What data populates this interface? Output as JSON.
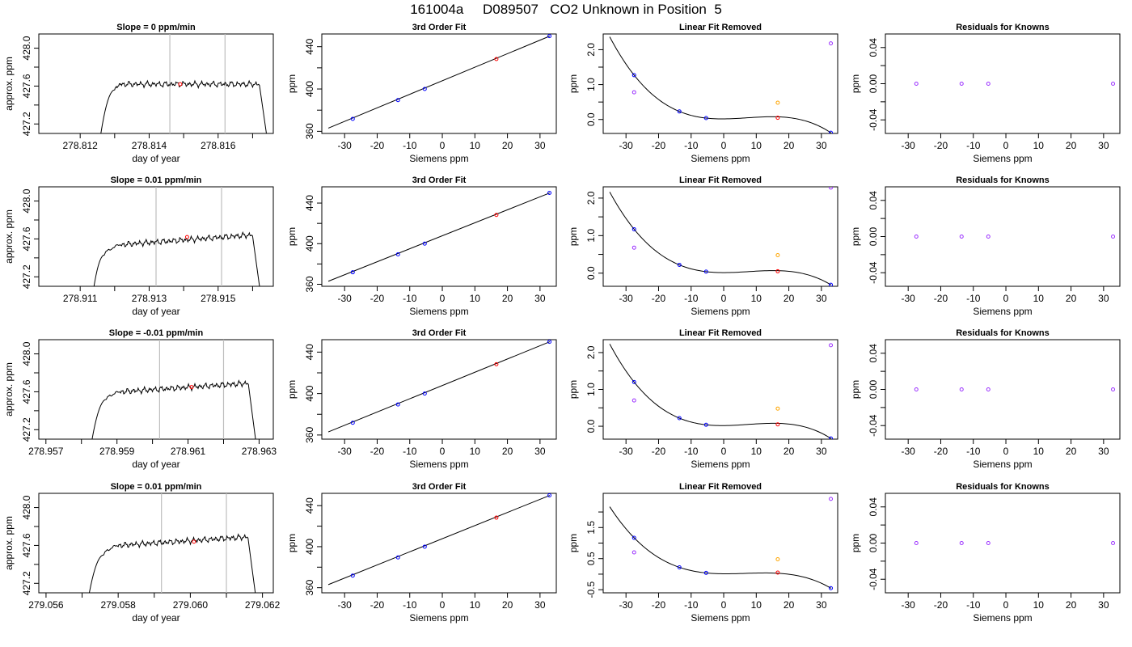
{
  "page": {
    "title": "161004a     D089507   CO2 Unknown in Position  5"
  },
  "colors": {
    "line": "#000000",
    "known": "#0000ff",
    "unknown": "#ff0000",
    "orange": "#ffa500",
    "violet": "#9b30ff",
    "gray": "#bebebe"
  },
  "chart_data": [
    {
      "type": "line",
      "row": 0,
      "title": "Slope =  0  ppm/min",
      "xlabel": "day of year",
      "ylabel": "approx. ppm",
      "xlim": [
        278.8108,
        278.8176
      ],
      "ylim": [
        427.1,
        428.15
      ],
      "xticks": [
        278.812,
        278.814,
        278.816
      ],
      "xminor": [
        278.813,
        278.815,
        278.817
      ],
      "yticks": [
        427.2,
        427.6,
        428.0
      ],
      "yminor": [
        427.4,
        427.8
      ],
      "vlines": [
        278.8146,
        278.8162
      ],
      "marker": {
        "x": 278.8149,
        "y": 427.62
      },
      "trace": {
        "x_start": 278.8126,
        "rise_end": 278.813,
        "plateau_start": 278.8132,
        "plateau_end": 278.8172,
        "x_end": 278.8174,
        "y_start": 427.1,
        "y_shoulder": 427.56,
        "plateau_level": 427.62,
        "plateau_slope": 0.0,
        "y_final": 427.1
      }
    },
    {
      "type": "scatter",
      "row": 0,
      "title": "3rd Order Fit",
      "xlabel": "Siemens ppm",
      "ylabel": "ppm",
      "xlim": [
        -37,
        35
      ],
      "ylim": [
        358,
        452
      ],
      "xticks": [
        -30,
        -20,
        -10,
        0,
        10,
        20,
        30
      ],
      "yticks": [
        360,
        400,
        440
      ],
      "yminor": [
        380,
        420
      ],
      "fit_line": {
        "x": [
          -35,
          33
        ],
        "y": [
          363,
          450
        ]
      },
      "series": [
        {
          "color": "known",
          "points": [
            [
              -27.5,
              371.8
            ],
            [
              -13.6,
              389.5
            ],
            [
              -5.4,
              400.0
            ],
            [
              32.9,
              450.0
            ]
          ]
        },
        {
          "color": "unknown",
          "points": [
            [
              16.6,
              428.3
            ]
          ]
        }
      ]
    },
    {
      "type": "scatter",
      "row": 0,
      "title": "Linear Fit Removed",
      "xlabel": "Siemens ppm",
      "ylabel": "ppm",
      "xlim": [
        -37,
        35
      ],
      "ylim": [
        -0.4,
        2.45
      ],
      "xticks": [
        -30,
        -20,
        -10,
        0,
        10,
        20,
        30
      ],
      "yticks": [
        0.0,
        1.0,
        2.0
      ],
      "ytick_labels": [
        "0.0",
        "1.0",
        "2.0"
      ],
      "yminor": [
        0.5,
        1.5
      ],
      "curve": {
        "x0": 0.0,
        "a": 0.0006,
        "b": 0.00016,
        "c": -8e-07
      },
      "series": [
        {
          "color": "known",
          "points": [
            [
              -27.5,
              1.27
            ],
            [
              -13.6,
              0.23
            ],
            [
              -5.4,
              0.04
            ],
            [
              32.9,
              -0.38
            ]
          ]
        },
        {
          "color": "unknown",
          "points": [
            [
              16.6,
              0.05
            ]
          ]
        },
        {
          "color": "orange",
          "points": [
            [
              16.6,
              0.48
            ]
          ]
        },
        {
          "color": "violet",
          "points": [
            [
              -27.5,
              0.78
            ],
            [
              32.9,
              2.18
            ]
          ]
        }
      ]
    },
    {
      "type": "scatter",
      "row": 0,
      "title": "Residuals for Knowns",
      "xlabel": "Siemens ppm",
      "ylabel": "ppm",
      "xlim": [
        -37,
        35
      ],
      "ylim": [
        -0.055,
        0.055
      ],
      "xticks": [
        -30,
        -20,
        -10,
        0,
        10,
        20,
        30
      ],
      "yticks": [
        -0.04,
        0.0,
        0.04
      ],
      "ytick_labels": [
        "-0.04",
        "0.00",
        "0.04"
      ],
      "yminor": [
        -0.02,
        0.02
      ],
      "series": [
        {
          "color": "violet",
          "points": [
            [
              -27.5,
              0.0
            ],
            [
              -13.6,
              0.0
            ],
            [
              -5.4,
              0.0
            ],
            [
              32.9,
              0.0
            ]
          ]
        }
      ]
    },
    {
      "type": "line",
      "row": 1,
      "title": "Slope =  0.01  ppm/min",
      "xlabel": "day of year",
      "ylabel": "approx. ppm",
      "xlim": [
        278.9098,
        278.9166
      ],
      "ylim": [
        427.1,
        428.15
      ],
      "xticks": [
        278.911,
        278.913,
        278.915
      ],
      "xminor": [
        278.912,
        278.914,
        278.916
      ],
      "yticks": [
        427.2,
        427.6,
        428.0
      ],
      "yminor": [
        427.4,
        427.8
      ],
      "vlines": [
        278.9132,
        278.9151
      ],
      "marker": {
        "x": 278.9141,
        "y": 427.62
      },
      "trace": {
        "x_start": 278.9114,
        "rise_end": 278.9117,
        "plateau_start": 278.9122,
        "plateau_end": 278.916,
        "x_end": 278.9162,
        "y_start": 427.1,
        "y_shoulder": 427.43,
        "plateau_level": 427.54,
        "plateau_slope": 27.0,
        "y_final": 427.1
      }
    },
    {
      "type": "scatter",
      "row": 1,
      "title": "3rd Order Fit",
      "xlabel": "Siemens ppm",
      "ylabel": "ppm",
      "xlim": [
        -37,
        35
      ],
      "ylim": [
        358,
        456
      ],
      "xticks": [
        -30,
        -20,
        -10,
        0,
        10,
        20,
        30
      ],
      "yticks": [
        360,
        400,
        440
      ],
      "yminor": [
        380,
        420
      ],
      "fit_line": {
        "x": [
          -35,
          33
        ],
        "y": [
          363,
          450
        ]
      },
      "series": [
        {
          "color": "known",
          "points": [
            [
              -27.5,
              371.8
            ],
            [
              -13.6,
              389.5
            ],
            [
              -5.4,
              400.0
            ],
            [
              32.9,
              450.0
            ]
          ]
        },
        {
          "color": "unknown",
          "points": [
            [
              16.6,
              428.3
            ]
          ]
        }
      ]
    },
    {
      "type": "scatter",
      "row": 1,
      "title": "Linear Fit Removed",
      "xlabel": "Siemens ppm",
      "ylabel": "ppm",
      "xlim": [
        -37,
        35
      ],
      "ylim": [
        -0.35,
        2.3
      ],
      "xticks": [
        -30,
        -20,
        -10,
        0,
        10,
        20,
        30
      ],
      "yticks": [
        0.0,
        1.0,
        2.0
      ],
      "ytick_labels": [
        "0.0",
        "1.0",
        "2.0"
      ],
      "yminor": [
        0.5,
        1.5
      ],
      "curve": {
        "x0": 0.0,
        "a": 0.0006,
        "b": 0.00016,
        "c": -8e-07
      },
      "series": [
        {
          "color": "known",
          "points": [
            [
              -27.5,
              1.17
            ],
            [
              -13.6,
              0.22
            ],
            [
              -5.4,
              0.04
            ],
            [
              32.9,
              -0.31
            ]
          ]
        },
        {
          "color": "unknown",
          "points": [
            [
              16.6,
              0.05
            ]
          ]
        },
        {
          "color": "orange",
          "points": [
            [
              16.6,
              0.48
            ]
          ]
        },
        {
          "color": "violet",
          "points": [
            [
              -27.5,
              0.68
            ],
            [
              32.9,
              2.28
            ]
          ]
        }
      ]
    },
    {
      "type": "scatter",
      "row": 1,
      "title": "Residuals for Knowns",
      "xlabel": "Siemens ppm",
      "ylabel": "ppm",
      "xlim": [
        -37,
        35
      ],
      "ylim": [
        -0.055,
        0.055
      ],
      "xticks": [
        -30,
        -20,
        -10,
        0,
        10,
        20,
        30
      ],
      "yticks": [
        -0.04,
        0.0,
        0.04
      ],
      "ytick_labels": [
        "-0.04",
        "0.00",
        "0.04"
      ],
      "yminor": [
        -0.02,
        0.02
      ],
      "series": [
        {
          "color": "violet",
          "points": [
            [
              -27.5,
              0.0
            ],
            [
              -13.6,
              0.0
            ],
            [
              -5.4,
              0.0
            ],
            [
              32.9,
              0.0
            ]
          ]
        }
      ]
    },
    {
      "type": "line",
      "row": 2,
      "title": "Slope =  -0.01  ppm/min",
      "xlabel": "day of year",
      "ylabel": "approx. ppm",
      "xlim": [
        278.9568,
        278.9634
      ],
      "ylim": [
        427.1,
        428.15
      ],
      "xticks": [
        278.957,
        278.959,
        278.961,
        278.963
      ],
      "xminor": [
        278.958,
        278.96,
        278.962
      ],
      "yticks": [
        427.2,
        427.6,
        428.0
      ],
      "yminor": [
        427.4,
        427.8
      ],
      "vlines": [
        278.9602,
        278.962
      ],
      "marker": {
        "x": 278.9611,
        "y": 427.65
      },
      "trace": {
        "x_start": 278.9583,
        "rise_end": 278.9587,
        "plateau_start": 278.9591,
        "plateau_end": 278.9627,
        "x_end": 278.9629,
        "y_start": 427.1,
        "y_shoulder": 427.52,
        "plateau_level": 427.6,
        "plateau_slope": 25.0,
        "y_final": 427.1
      }
    },
    {
      "type": "scatter",
      "row": 2,
      "title": "3rd Order Fit",
      "xlabel": "Siemens ppm",
      "ylabel": "ppm",
      "xlim": [
        -37,
        35
      ],
      "ylim": [
        356,
        452
      ],
      "xticks": [
        -30,
        -20,
        -10,
        0,
        10,
        20,
        30
      ],
      "yticks": [
        360,
        400,
        440
      ],
      "yminor": [
        380,
        420
      ],
      "fit_line": {
        "x": [
          -35,
          33
        ],
        "y": [
          363,
          450
        ]
      },
      "series": [
        {
          "color": "known",
          "points": [
            [
              -27.5,
              371.8
            ],
            [
              -13.6,
              389.5
            ],
            [
              -5.4,
              400.0
            ],
            [
              32.9,
              450.0
            ]
          ]
        },
        {
          "color": "unknown",
          "points": [
            [
              16.6,
              428.3
            ]
          ]
        }
      ]
    },
    {
      "type": "scatter",
      "row": 2,
      "title": "Linear Fit Removed",
      "xlabel": "Siemens ppm",
      "ylabel": "ppm",
      "xlim": [
        -37,
        35
      ],
      "ylim": [
        -0.35,
        2.35
      ],
      "xticks": [
        -30,
        -20,
        -10,
        0,
        10,
        20,
        30
      ],
      "yticks": [
        0.0,
        1.0,
        2.0
      ],
      "ytick_labels": [
        "0.0",
        "1.0",
        "2.0"
      ],
      "yminor": [
        0.5,
        1.5
      ],
      "curve": {
        "x0": 0.0,
        "a": 0.0006,
        "b": 0.00016,
        "c": -8e-07
      },
      "series": [
        {
          "color": "known",
          "points": [
            [
              -27.5,
              1.2
            ],
            [
              -13.6,
              0.22
            ],
            [
              -5.4,
              0.04
            ],
            [
              32.9,
              -0.33
            ]
          ]
        },
        {
          "color": "unknown",
          "points": [
            [
              16.6,
              0.05
            ]
          ]
        },
        {
          "color": "orange",
          "points": [
            [
              16.6,
              0.48
            ]
          ]
        },
        {
          "color": "violet",
          "points": [
            [
              -27.5,
              0.7
            ],
            [
              32.9,
              2.2
            ]
          ]
        }
      ]
    },
    {
      "type": "scatter",
      "row": 2,
      "title": "Residuals for Knowns",
      "xlabel": "Siemens ppm",
      "ylabel": "ppm",
      "xlim": [
        -37,
        35
      ],
      "ylim": [
        -0.055,
        0.055
      ],
      "xticks": [
        -30,
        -20,
        -10,
        0,
        10,
        20,
        30
      ],
      "yticks": [
        -0.04,
        0.0,
        0.04
      ],
      "ytick_labels": [
        "-0.04",
        "0.00",
        "0.04"
      ],
      "yminor": [
        -0.02,
        0.02
      ],
      "series": [
        {
          "color": "violet",
          "points": [
            [
              -27.5,
              0.0
            ],
            [
              -13.6,
              0.0
            ],
            [
              -5.4,
              0.0
            ],
            [
              32.9,
              0.0
            ]
          ]
        }
      ]
    },
    {
      "type": "line",
      "row": 3,
      "title": "Slope =  0.01  ppm/min",
      "xlabel": "day of year",
      "ylabel": "approx. ppm",
      "xlim": [
        279.0558,
        279.0623
      ],
      "ylim": [
        427.1,
        428.15
      ],
      "xticks": [
        279.056,
        279.058,
        279.06,
        279.062
      ],
      "xminor": [
        279.057,
        279.059,
        279.061
      ],
      "yticks": [
        427.2,
        427.6,
        428.0
      ],
      "yminor": [
        427.4,
        427.8
      ],
      "vlines": [
        279.0592,
        279.061
      ],
      "marker": {
        "x": 279.0601,
        "y": 427.64
      },
      "trace": {
        "x_start": 279.0572,
        "rise_end": 279.0576,
        "plateau_start": 279.058,
        "plateau_end": 279.0616,
        "x_end": 279.0618,
        "y_start": 427.1,
        "y_shoulder": 427.5,
        "plateau_level": 427.6,
        "plateau_slope": 25.0,
        "y_final": 427.1
      }
    },
    {
      "type": "scatter",
      "row": 3,
      "title": "3rd Order Fit",
      "xlabel": "Siemens ppm",
      "ylabel": "ppm",
      "xlim": [
        -37,
        35
      ],
      "ylim": [
        355,
        452
      ],
      "xticks": [
        -30,
        -20,
        -10,
        0,
        10,
        20,
        30
      ],
      "yticks": [
        360,
        400,
        440
      ],
      "yminor": [
        380,
        420
      ],
      "fit_line": {
        "x": [
          -35,
          33
        ],
        "y": [
          363,
          450
        ]
      },
      "series": [
        {
          "color": "known",
          "points": [
            [
              -27.5,
              371.8
            ],
            [
              -13.6,
              389.5
            ],
            [
              -5.4,
              400.0
            ],
            [
              32.9,
              450.0
            ]
          ]
        },
        {
          "color": "unknown",
          "points": [
            [
              16.6,
              428.3
            ]
          ]
        }
      ]
    },
    {
      "type": "scatter",
      "row": 3,
      "title": "Linear Fit Removed",
      "xlabel": "Siemens ppm",
      "ylabel": "ppm",
      "xlim": [
        -37,
        35
      ],
      "ylim": [
        -0.6,
        2.6
      ],
      "xticks": [
        -30,
        -20,
        -10,
        0,
        10,
        20,
        30
      ],
      "yticks": [
        -0.5,
        0.5,
        1.5
      ],
      "ytick_labels": [
        "-0.5",
        "0.5",
        "1.5"
      ],
      "yminor": [
        0.0,
        1.0,
        2.0
      ],
      "curve": {
        "x0": 0.0,
        "a": 0.0006,
        "b": 0.00016,
        "c": -8e-07
      },
      "series": [
        {
          "color": "known",
          "points": [
            [
              -27.5,
              1.17
            ],
            [
              -13.6,
              0.22
            ],
            [
              -5.4,
              0.04
            ],
            [
              32.9,
              -0.45
            ]
          ]
        },
        {
          "color": "unknown",
          "points": [
            [
              16.6,
              0.05
            ]
          ]
        },
        {
          "color": "orange",
          "points": [
            [
              16.6,
              0.48
            ]
          ]
        },
        {
          "color": "violet",
          "points": [
            [
              -27.5,
              0.7
            ],
            [
              32.9,
              2.42
            ]
          ]
        }
      ]
    },
    {
      "type": "scatter",
      "row": 3,
      "title": "Residuals for Knowns",
      "xlabel": "Siemens ppm",
      "ylabel": "ppm",
      "xlim": [
        -37,
        35
      ],
      "ylim": [
        -0.055,
        0.055
      ],
      "xticks": [
        -30,
        -20,
        -10,
        0,
        10,
        20,
        30
      ],
      "yticks": [
        -0.04,
        0.0,
        0.04
      ],
      "ytick_labels": [
        "-0.04",
        "0.00",
        "0.04"
      ],
      "yminor": [
        -0.02,
        0.02
      ],
      "series": [
        {
          "color": "violet",
          "points": [
            [
              -27.5,
              0.0
            ],
            [
              -13.6,
              0.0
            ],
            [
              -5.4,
              0.0
            ],
            [
              32.9,
              0.0
            ]
          ]
        }
      ]
    }
  ]
}
